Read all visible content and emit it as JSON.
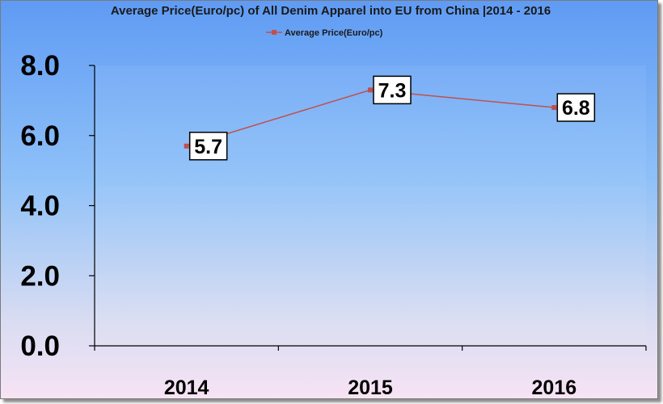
{
  "chart_data": {
    "type": "line",
    "title": "Average Price(Euro/pc) of All Denim Apparel into EU from China |2014 - 2016",
    "categories": [
      "2014",
      "2015",
      "2016"
    ],
    "series": [
      {
        "name": "Average Price(Euro/pc)",
        "values": [
          5.7,
          7.3,
          6.8
        ],
        "data_labels": [
          "5.7",
          "7.3",
          "6.8"
        ]
      }
    ],
    "y_ticks": [
      "0.0",
      "2.0",
      "4.0",
      "6.0",
      "8.0"
    ],
    "ylim": [
      0,
      8
    ],
    "xlabel": "",
    "ylabel": "",
    "legend_position": "top",
    "grid": false,
    "colors": {
      "line": "#c0504d",
      "background_top": "#5f9bf4",
      "background_bottom": "#f7e3f4"
    }
  }
}
